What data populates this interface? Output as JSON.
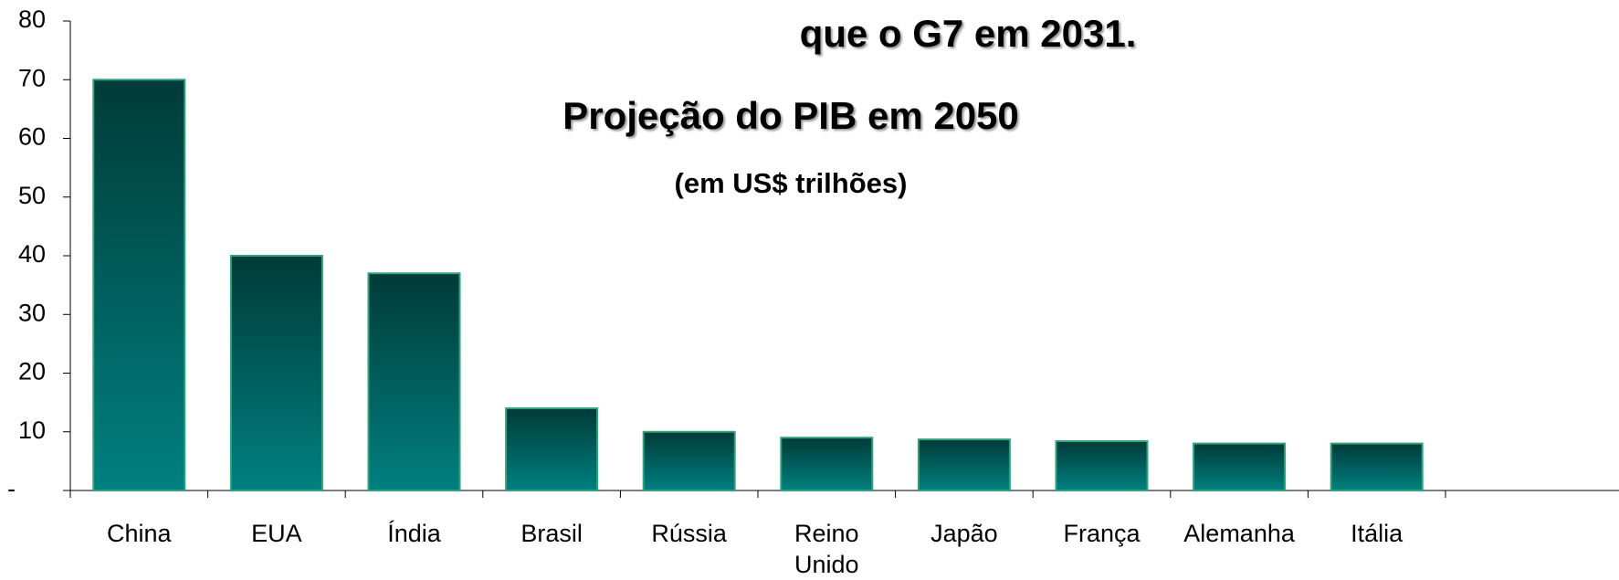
{
  "chart_data": {
    "type": "bar",
    "annotation": "que o G7 em 2031.",
    "title": "Projeção do PIB em 2050",
    "subtitle": "(em US$ trilhões)",
    "categories": [
      "China",
      "EUA",
      "Índia",
      "Brasil",
      "Rússia",
      "Reino Unido",
      "Japão",
      "França",
      "Alemanha",
      "Itália"
    ],
    "values": [
      70,
      40,
      37,
      14,
      10,
      9,
      8.7,
      8.4,
      8,
      8
    ],
    "color": "#008080",
    "ylim": [
      0,
      80
    ],
    "yticks": [
      {
        "value": 0,
        "label": "-"
      },
      10,
      20,
      30,
      40,
      50,
      60,
      70,
      80
    ],
    "grid": false
  }
}
